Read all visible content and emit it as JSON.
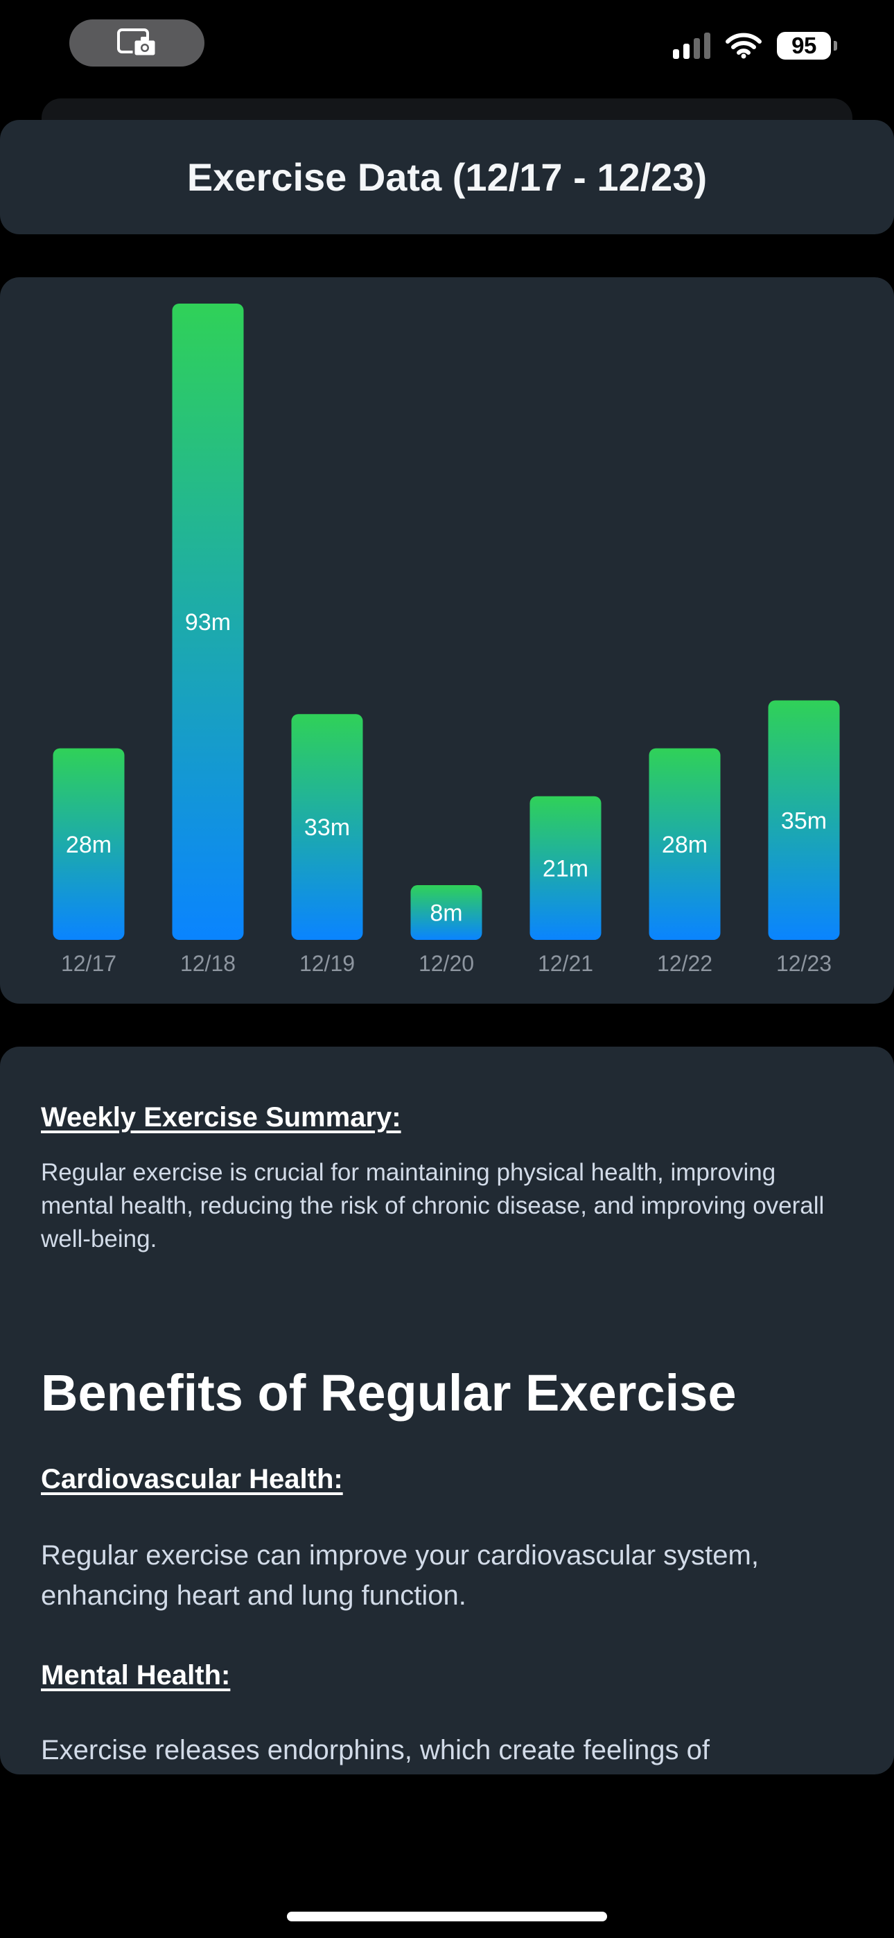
{
  "status_bar": {
    "battery": "95",
    "icons": [
      "screen-capture-icon",
      "cellular-signal-icon",
      "wifi-icon",
      "battery-icon"
    ]
  },
  "header": {
    "title": "Exercise Data (12/17 - 12/23)"
  },
  "chart_data": {
    "type": "bar",
    "categories": [
      "12/17",
      "12/18",
      "12/19",
      "12/20",
      "12/21",
      "12/22",
      "12/23"
    ],
    "values": [
      28,
      93,
      33,
      8,
      21,
      28,
      35
    ],
    "value_labels": [
      "28m",
      "93m",
      "33m",
      "8m",
      "21m",
      "28m",
      "35m"
    ],
    "title": "",
    "xlabel": "",
    "ylabel": "",
    "ylim": [
      0,
      93
    ],
    "grid": false,
    "colors": {
      "bar_top": "#30d158",
      "bar_bottom": "#0a84ff"
    }
  },
  "info": {
    "summary_heading": "Weekly Exercise Summary:",
    "summary_text": "Regular exercise is crucial for maintaining physical health, improving mental health, reducing the risk of chronic disease, and improving overall well-being.",
    "benefits_heading": "Benefits of Regular Exercise",
    "benefits": [
      {
        "title": "Cardiovascular Health:",
        "text": "Regular exercise can improve your cardiovascular system, enhancing heart and lung function."
      },
      {
        "title": "Mental Health:",
        "text": "Exercise releases endorphins, which create feelings of"
      }
    ]
  },
  "colors": {
    "background": "#000000",
    "card": "#212a33",
    "body_text": "#d2dbe8",
    "tick_text": "#8e96a0"
  }
}
